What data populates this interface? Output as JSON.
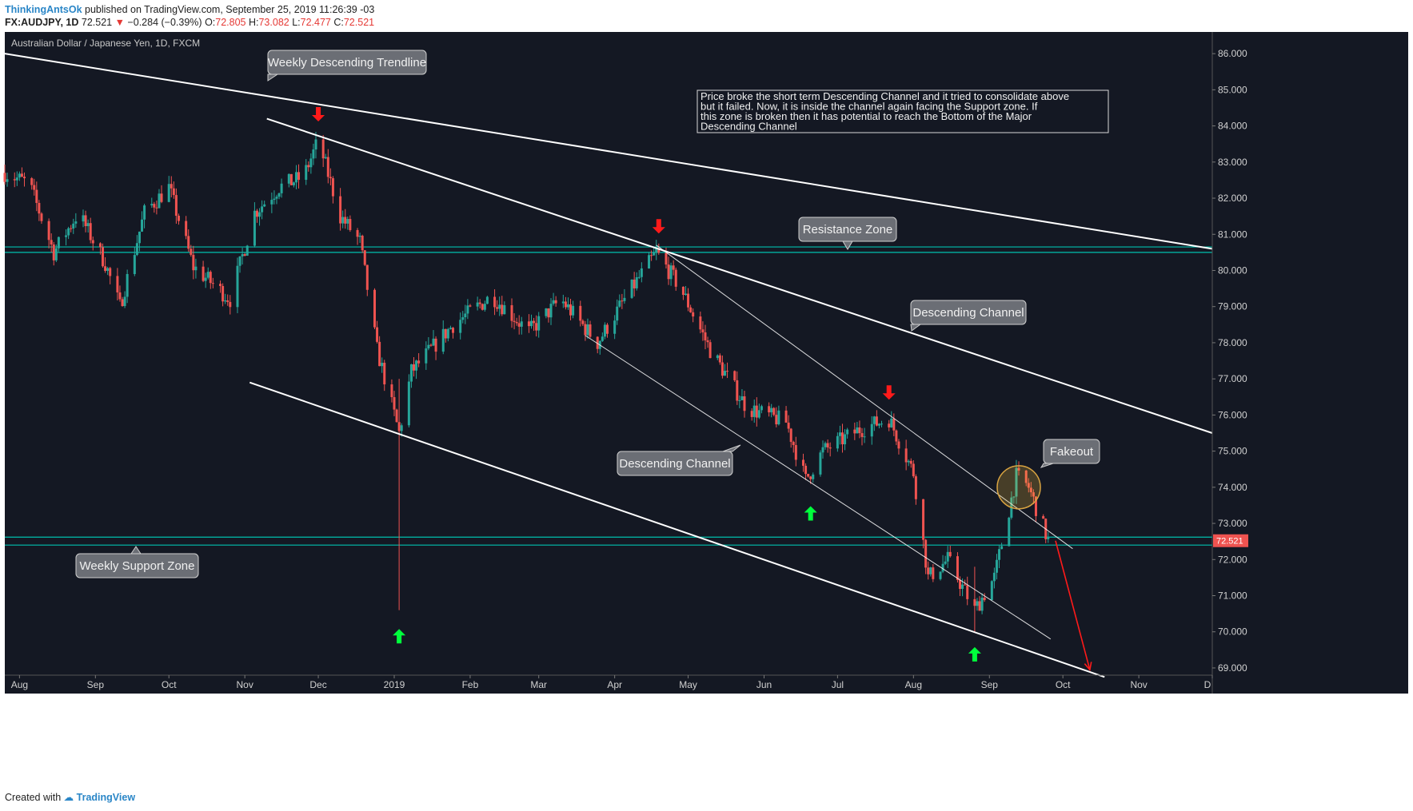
{
  "header": {
    "author": "ThinkingAntsOk",
    "published": "published on TradingView.com, September 25, 2019 11:26:39 -03",
    "symbol": "FX:AUDJPY, 1D",
    "last": "72.521",
    "change": "−0.284 (−0.39%)",
    "o_label": "O:",
    "o_value": "72.805",
    "h_label": "H:",
    "h_value": "73.082",
    "l_label": "L:",
    "l_value": "72.477",
    "c_label": "C:",
    "c_value": "72.521"
  },
  "footer": {
    "created_with": "Created with",
    "brand": "TradingView"
  },
  "colors": {
    "background": "#141823",
    "up": "#26a69a",
    "down": "#ef5350",
    "zone": "#00bfae",
    "line": "#ffffff",
    "red_arrow": "#ff1a1a",
    "green_arrow": "#00ff3c",
    "price_tag": "#ef5350"
  },
  "chart_data": {
    "type": "candlestick",
    "title": "Australian Dollar / Japanese Yen, 1D, FXCM",
    "price_axis_side": "right",
    "ylim": [
      68.8,
      86.6
    ],
    "y_ticks": [
      "86.000",
      "85.000",
      "84.000",
      "83.000",
      "82.000",
      "81.000",
      "80.000",
      "79.000",
      "78.000",
      "77.000",
      "76.000",
      "75.000",
      "74.000",
      "73.000",
      "72.000",
      "71.000",
      "70.000",
      "69.000"
    ],
    "x_ticks": [
      "Aug",
      "Sep",
      "Oct",
      "Nov",
      "Dec",
      "2019",
      "Feb",
      "Mar",
      "Apr",
      "May",
      "Jun",
      "Jul",
      "Aug",
      "Sep",
      "Oct",
      "Nov",
      "D"
    ],
    "x_range": [
      "2018-07-26",
      "2019-12-01"
    ],
    "last_price": 72.521,
    "price_path": [
      {
        "date": "2018-07-26",
        "price": 82.7
      },
      {
        "date": "2018-08-05",
        "price": 82.4
      },
      {
        "date": "2018-08-15",
        "price": 80.5
      },
      {
        "date": "2018-08-25",
        "price": 81.6
      },
      {
        "date": "2018-09-05",
        "price": 80.2
      },
      {
        "date": "2018-09-11",
        "price": 79.0
      },
      {
        "date": "2018-09-21",
        "price": 81.6
      },
      {
        "date": "2018-10-01",
        "price": 82.3
      },
      {
        "date": "2018-10-11",
        "price": 80.1
      },
      {
        "date": "2018-10-26",
        "price": 79.2
      },
      {
        "date": "2018-11-05",
        "price": 81.6
      },
      {
        "date": "2018-11-15",
        "price": 82.3
      },
      {
        "date": "2018-11-25",
        "price": 82.6
      },
      {
        "date": "2018-12-01",
        "price": 83.6
      },
      {
        "date": "2018-12-10",
        "price": 81.5
      },
      {
        "date": "2018-12-18",
        "price": 80.8
      },
      {
        "date": "2018-12-25",
        "price": 77.8
      },
      {
        "date": "2019-01-03",
        "price": 75.5
      },
      {
        "date": "2019-01-08",
        "price": 77.2
      },
      {
        "date": "2019-01-25",
        "price": 78.5
      },
      {
        "date": "2019-02-10",
        "price": 79.3
      },
      {
        "date": "2019-02-25",
        "price": 78.3
      },
      {
        "date": "2019-03-10",
        "price": 79.2
      },
      {
        "date": "2019-03-25",
        "price": 78.0
      },
      {
        "date": "2019-04-05",
        "price": 79.2
      },
      {
        "date": "2019-04-18",
        "price": 80.5
      },
      {
        "date": "2019-04-28",
        "price": 79.5
      },
      {
        "date": "2019-05-10",
        "price": 77.8
      },
      {
        "date": "2019-05-25",
        "price": 76.2
      },
      {
        "date": "2019-06-10",
        "price": 75.8
      },
      {
        "date": "2019-06-18",
        "price": 74.2
      },
      {
        "date": "2019-06-25",
        "price": 75.0
      },
      {
        "date": "2019-07-10",
        "price": 75.6
      },
      {
        "date": "2019-07-22",
        "price": 75.9
      },
      {
        "date": "2019-08-01",
        "price": 74.4
      },
      {
        "date": "2019-08-07",
        "price": 71.5
      },
      {
        "date": "2019-08-15",
        "price": 72.0
      },
      {
        "date": "2019-08-26",
        "price": 70.6
      },
      {
        "date": "2019-09-03",
        "price": 71.5
      },
      {
        "date": "2019-09-12",
        "price": 74.3
      },
      {
        "date": "2019-09-17",
        "price": 74.0
      },
      {
        "date": "2019-09-25",
        "price": 72.52
      }
    ],
    "wick_extremes": [
      {
        "date": "2019-01-03",
        "low": 70.6,
        "high": 77.0
      },
      {
        "date": "2019-08-26",
        "low": 70.0,
        "high": 71.8
      }
    ],
    "lines": [
      {
        "name": "Weekly Descending Trendline",
        "from": {
          "date": "2018-07-26",
          "price": 86.0
        },
        "to": {
          "date": "2019-12-01",
          "price": 80.6
        },
        "weight": "thick"
      },
      {
        "name": "Descending Channel (upper-outer)",
        "from": {
          "date": "2018-11-10",
          "price": 84.2
        },
        "to": {
          "date": "2019-12-01",
          "price": 75.5
        },
        "weight": "thick"
      },
      {
        "name": "Descending Channel (lower-outer)",
        "from": {
          "date": "2018-11-03",
          "price": 76.9
        },
        "to": {
          "date": "2019-10-18",
          "price": 68.75
        },
        "weight": "thick"
      },
      {
        "name": "Short channel top",
        "from": {
          "date": "2019-04-18",
          "price": 80.7
        },
        "to": {
          "date": "2019-10-05",
          "price": 72.3
        },
        "weight": "thin"
      },
      {
        "name": "Short channel bottom",
        "from": {
          "date": "2019-03-20",
          "price": 78.2
        },
        "to": {
          "date": "2019-09-26",
          "price": 69.8
        },
        "weight": "thin"
      }
    ],
    "zones": [
      {
        "name": "Resistance Zone",
        "top": 80.65,
        "bottom": 80.5
      },
      {
        "name": "Weekly Support Zone",
        "top": 72.62,
        "bottom": 72.4
      }
    ],
    "projection": {
      "from": {
        "date": "2019-09-28",
        "price": 72.52
      },
      "to": {
        "date": "2019-10-12",
        "price": 68.95
      }
    },
    "red_arrows": [
      {
        "date": "2018-12-01",
        "price": 84.3
      },
      {
        "date": "2019-04-19",
        "price": 81.2
      },
      {
        "date": "2019-07-22",
        "price": 76.6
      }
    ],
    "green_arrows": [
      {
        "date": "2019-01-03",
        "price": 69.9
      },
      {
        "date": "2019-06-20",
        "price": 73.3
      },
      {
        "date": "2019-08-26",
        "price": 69.4
      }
    ],
    "highlight_circle": {
      "date": "2019-09-13",
      "price": 74.0
    },
    "callouts": [
      {
        "text": "Weekly Descending Trendline",
        "pointer": "down"
      },
      {
        "text": "Resistance Zone",
        "pointer": "down"
      },
      {
        "text": "Descending Channel",
        "pointer": "down"
      },
      {
        "text": "Descending Channel",
        "pointer": "up"
      },
      {
        "text": "Fakeout",
        "pointer": "down"
      },
      {
        "text": "Weekly Support Zone",
        "pointer": "up"
      }
    ],
    "note": "Price broke the short term Descending Channel and it tried to consolidate above but it failed. Now, it is inside the channel again facing the Support zone. If this zone is broken then it has potential to reach the Bottom of the Major Descending Channel"
  }
}
